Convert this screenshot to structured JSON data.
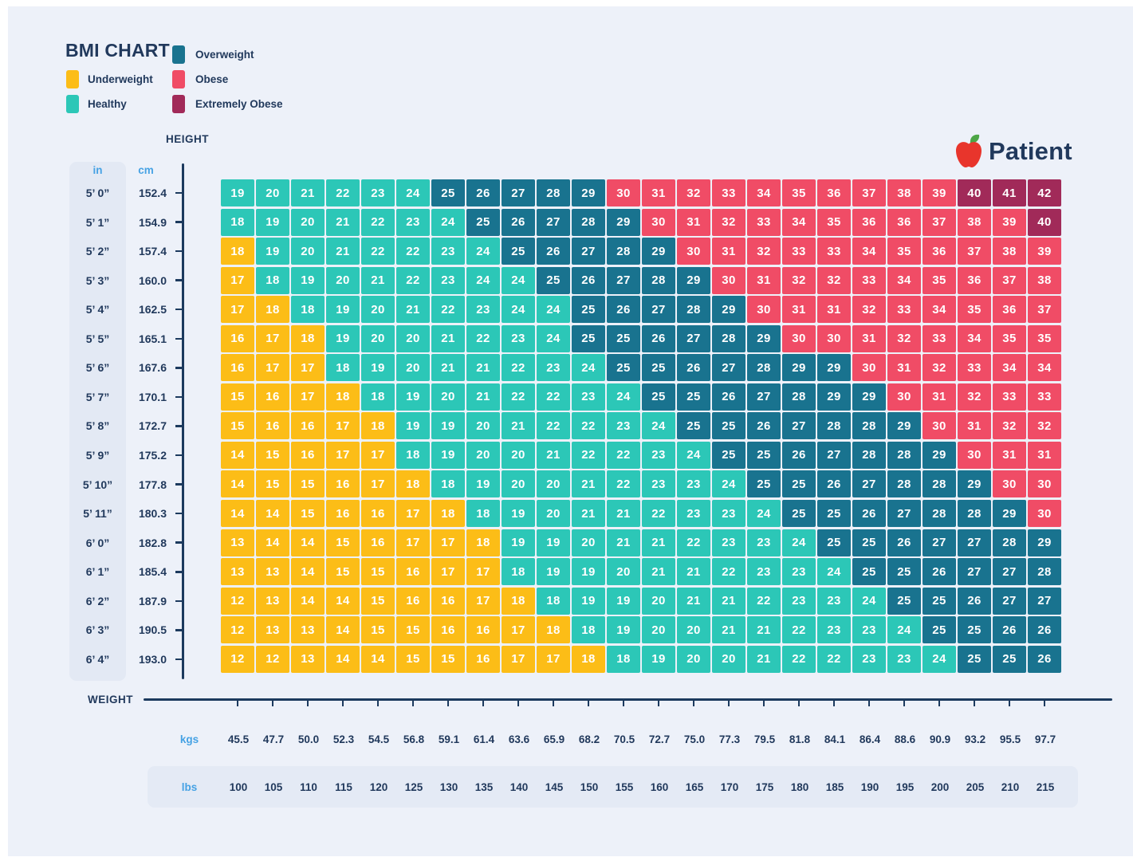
{
  "title": "BMI CHART",
  "logo_text": "Patient",
  "legend": {
    "items": [
      {
        "label": "Underweight",
        "key": "U"
      },
      {
        "label": "Healthy",
        "key": "H"
      },
      {
        "label": "Overweight",
        "key": "O"
      },
      {
        "label": "Obese",
        "key": "B"
      },
      {
        "label": "Extremely Obese",
        "key": "E"
      }
    ]
  },
  "colors": {
    "U": "#fcbd17",
    "H": "#2cc7b7",
    "O": "#19738f",
    "B": "#f04c66",
    "E": "#a12a59",
    "navy_text": "#21395c",
    "light_blue_text": "#46a2e4",
    "background": "#edf1f9",
    "panel": "#e3e9f4",
    "axis_line": "#1c3a5e",
    "apple_red": "#e8352c",
    "leaf_green": "#4da647"
  },
  "chart_data": {
    "type": "heatmap",
    "title": "BMI CHART",
    "x": {
      "label": "WEIGHT",
      "kgs_label": "kgs",
      "lbs_label": "lbs",
      "kgs": [
        "45.5",
        "47.7",
        "50.0",
        "52.3",
        "54.5",
        "56.8",
        "59.1",
        "61.4",
        "63.6",
        "65.9",
        "68.2",
        "70.5",
        "72.7",
        "75.0",
        "77.3",
        "79.5",
        "81.8",
        "84.1",
        "86.4",
        "88.6",
        "90.9",
        "93.2",
        "95.5",
        "97.7"
      ],
      "lbs": [
        "100",
        "105",
        "110",
        "115",
        "120",
        "125",
        "130",
        "135",
        "140",
        "145",
        "150",
        "155",
        "160",
        "165",
        "170",
        "175",
        "180",
        "185",
        "190",
        "195",
        "200",
        "205",
        "210",
        "215"
      ]
    },
    "y": {
      "label": "HEIGHT",
      "in_label": "in",
      "cm_label": "cm",
      "feet_inches": [
        "5’ 0”",
        "5’ 1”",
        "5’ 2”",
        "5’ 3”",
        "5’ 4”",
        "5’ 5”",
        "5’ 6”",
        "5’ 7”",
        "5’ 8”",
        "5’ 9”",
        "5’ 10”",
        "5’ 11”",
        "6’ 0”",
        "6’ 1”",
        "6’ 2”",
        "6’ 3”",
        "6’ 4”"
      ],
      "cm": [
        "152.4",
        "154.9",
        "157.4",
        "160.0",
        "162.5",
        "165.1",
        "167.6",
        "170.1",
        "172.7",
        "175.2",
        "177.8",
        "180.3",
        "182.8",
        "185.4",
        "187.9",
        "190.5",
        "193.0"
      ]
    },
    "category_legend": {
      "U": "Underweight",
      "H": "Healthy",
      "O": "Overweight",
      "B": "Obese",
      "E": "Extremely Obese"
    },
    "values": [
      [
        19,
        20,
        21,
        22,
        23,
        24,
        25,
        26,
        27,
        28,
        29,
        30,
        31,
        32,
        33,
        34,
        35,
        36,
        37,
        38,
        39,
        40,
        41,
        42
      ],
      [
        18,
        19,
        20,
        21,
        22,
        23,
        24,
        25,
        26,
        27,
        28,
        29,
        30,
        31,
        32,
        33,
        34,
        35,
        36,
        36,
        37,
        38,
        39,
        40
      ],
      [
        18,
        19,
        20,
        21,
        22,
        22,
        23,
        24,
        25,
        26,
        27,
        28,
        29,
        30,
        31,
        32,
        33,
        33,
        34,
        35,
        36,
        37,
        38,
        39
      ],
      [
        17,
        18,
        19,
        20,
        21,
        22,
        23,
        24,
        24,
        25,
        26,
        27,
        28,
        29,
        30,
        31,
        32,
        32,
        33,
        34,
        35,
        36,
        37,
        38
      ],
      [
        17,
        18,
        18,
        19,
        20,
        21,
        22,
        23,
        24,
        24,
        25,
        26,
        27,
        28,
        29,
        30,
        31,
        31,
        32,
        33,
        34,
        35,
        36,
        37
      ],
      [
        16,
        17,
        18,
        19,
        20,
        20,
        21,
        22,
        23,
        24,
        25,
        25,
        26,
        27,
        28,
        29,
        30,
        30,
        31,
        32,
        33,
        34,
        35,
        35
      ],
      [
        16,
        17,
        17,
        18,
        19,
        20,
        21,
        21,
        22,
        23,
        24,
        25,
        25,
        26,
        27,
        28,
        29,
        29,
        30,
        31,
        32,
        33,
        34,
        34
      ],
      [
        15,
        16,
        17,
        18,
        18,
        19,
        20,
        21,
        22,
        22,
        23,
        24,
        25,
        25,
        26,
        27,
        28,
        29,
        29,
        30,
        31,
        32,
        33,
        33
      ],
      [
        15,
        16,
        16,
        17,
        18,
        19,
        19,
        20,
        21,
        22,
        22,
        23,
        24,
        25,
        25,
        26,
        27,
        28,
        28,
        29,
        30,
        31,
        32,
        32
      ],
      [
        14,
        15,
        16,
        17,
        17,
        18,
        19,
        20,
        20,
        21,
        22,
        22,
        23,
        24,
        25,
        25,
        26,
        27,
        28,
        28,
        29,
        30,
        31,
        31
      ],
      [
        14,
        15,
        15,
        16,
        17,
        18,
        18,
        19,
        20,
        20,
        21,
        22,
        23,
        23,
        24,
        25,
        25,
        26,
        27,
        28,
        28,
        29,
        30,
        30
      ],
      [
        14,
        14,
        15,
        16,
        16,
        17,
        18,
        18,
        19,
        20,
        21,
        21,
        22,
        23,
        23,
        24,
        25,
        25,
        26,
        27,
        28,
        28,
        29,
        30
      ],
      [
        13,
        14,
        14,
        15,
        16,
        17,
        17,
        18,
        19,
        19,
        20,
        21,
        21,
        22,
        23,
        23,
        24,
        25,
        25,
        26,
        27,
        27,
        28,
        29
      ],
      [
        13,
        13,
        14,
        15,
        15,
        16,
        17,
        17,
        18,
        19,
        19,
        20,
        21,
        21,
        22,
        23,
        23,
        24,
        25,
        25,
        26,
        27,
        27,
        28
      ],
      [
        12,
        13,
        14,
        14,
        15,
        16,
        16,
        17,
        18,
        18,
        19,
        19,
        20,
        21,
        21,
        22,
        23,
        23,
        24,
        25,
        25,
        26,
        27,
        27
      ],
      [
        12,
        13,
        13,
        14,
        15,
        15,
        16,
        16,
        17,
        18,
        18,
        19,
        20,
        20,
        21,
        21,
        22,
        23,
        23,
        24,
        25,
        25,
        26,
        26
      ],
      [
        12,
        12,
        13,
        14,
        14,
        15,
        15,
        16,
        17,
        17,
        18,
        18,
        19,
        20,
        20,
        21,
        22,
        22,
        23,
        23,
        24,
        25,
        25,
        26
      ]
    ],
    "categories": [
      "HHHHHHOOOOOBBBBBBBBBBEEE",
      "HHHHHHHOOOOOBBBBBBBBBBBE",
      "UHHHHHHHOOOOOBBBBBBBBBBB",
      "UHHHHHHHHOOOOOBBBBBBBBBB",
      "UUHHHHHHHHOOOOOBBBBBBBBB",
      "UUUHHHHHHHOOOOOOBBBBBBBB",
      "UUUHHHHHHHHOOOOOOOBBBBBB",
      "UUUUHHHHHHHHOOOOOOOBBBBB",
      "UUUUUHHHHHHHHOOOOOOOBBBB",
      "UUUUUHHHHHHHHHOOOOOOOBBB",
      "UUUUUUHHHHHHHHHOOOOOOOBB",
      "UUUUUUUHHHHHHHHHOOOOOOOB",
      "UUUUUUUUHHHHHHHHHOOOOOOO",
      "UUUUUUUUHHHHHHHHHHOOOOOO",
      "UUUUUUUUUHHHHHHHHHHOOOOO",
      "UUUUUUUUUUHHHHHHHHHHOOOO",
      "UUUUUUUUUUUHHHHHHHHHHOOO"
    ]
  }
}
